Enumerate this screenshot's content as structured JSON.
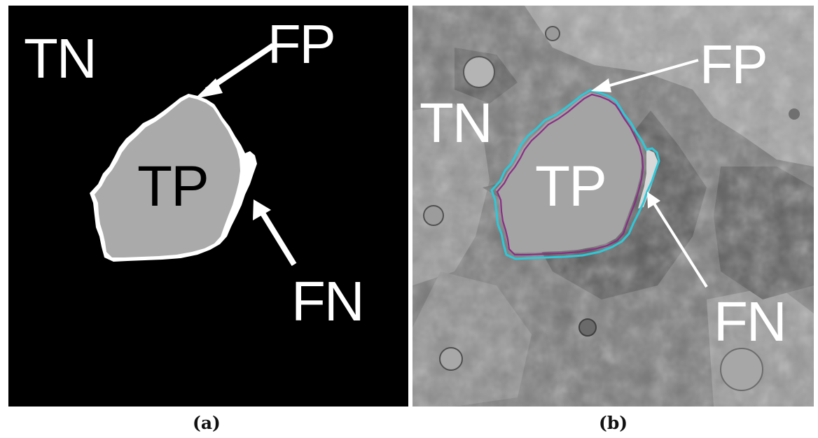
{
  "panels": [
    {
      "caption": "(a)",
      "labels": {
        "tn": "TN",
        "tp": "TP",
        "fp": "FP",
        "fn": "FN"
      }
    },
    {
      "caption": "(b)",
      "labels": {
        "tn": "TN",
        "tp": "TP",
        "fp": "FP",
        "fn": "FN"
      }
    }
  ],
  "colors": {
    "background_mask": "#000000",
    "tp_region": "#aaaaaa",
    "fp_fn_region": "#ffffff",
    "ground_truth_outline": "#8a2d86",
    "prediction_outline": "#2ec8d8"
  }
}
